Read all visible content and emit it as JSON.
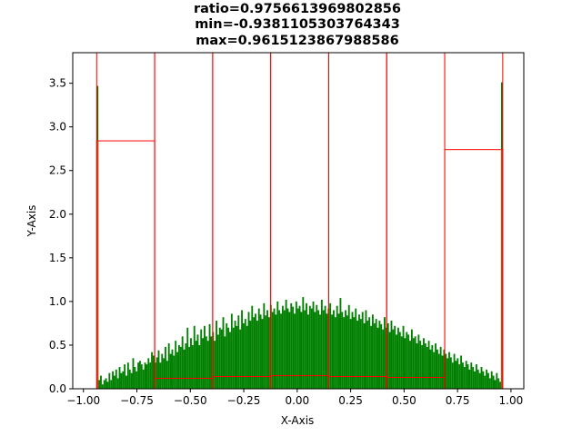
{
  "chart_data": {
    "type": "bar",
    "title_lines": [
      "ratio=0.9756613969802856",
      "min=-0.9381105303764343",
      "max=0.9615123867988586"
    ],
    "xlabel": "X-Axis",
    "ylabel": "Y-Axis",
    "xlim": [
      -1.05,
      1.06
    ],
    "ylim": [
      0,
      3.85
    ],
    "xticks": [
      {
        "value": -1.0,
        "label": "−1.00"
      },
      {
        "value": -0.75,
        "label": "−0.75"
      },
      {
        "value": -0.5,
        "label": "−0.50"
      },
      {
        "value": -0.25,
        "label": "−0.25"
      },
      {
        "value": 0.0,
        "label": "0.00"
      },
      {
        "value": 0.25,
        "label": "0.25"
      },
      {
        "value": 0.5,
        "label": "0.50"
      },
      {
        "value": 0.75,
        "label": "0.75"
      },
      {
        "value": 1.0,
        "label": "1.00"
      }
    ],
    "yticks": [
      {
        "value": 0.0,
        "label": "0.0"
      },
      {
        "value": 0.5,
        "label": "0.5"
      },
      {
        "value": 1.0,
        "label": "1.0"
      },
      {
        "value": 1.5,
        "label": "1.5"
      },
      {
        "value": 2.0,
        "label": "2.0"
      },
      {
        "value": 2.5,
        "label": "2.5"
      },
      {
        "value": 3.0,
        "label": "3.0"
      },
      {
        "value": 3.5,
        "label": "3.5"
      }
    ],
    "grid": false,
    "series": [
      {
        "bar_color": "#008000",
        "x_start": -0.9381,
        "x_end": 0.9615,
        "values": [
          3.47,
          0.1,
          0.15,
          0.05,
          0.1,
          0.12,
          0.08,
          0.18,
          0.1,
          0.2,
          0.15,
          0.22,
          0.12,
          0.25,
          0.18,
          0.2,
          0.28,
          0.15,
          0.3,
          0.22,
          0.18,
          0.35,
          0.25,
          0.2,
          0.3,
          0.32,
          0.28,
          0.22,
          0.3,
          0.28,
          0.35,
          0.3,
          0.42,
          0.38,
          0.3,
          0.36,
          0.44,
          0.3,
          0.4,
          0.35,
          0.48,
          0.32,
          0.52,
          0.4,
          0.45,
          0.38,
          0.55,
          0.42,
          0.5,
          0.48,
          0.6,
          0.45,
          0.52,
          0.7,
          0.48,
          0.58,
          0.5,
          0.72,
          0.55,
          0.62,
          0.5,
          0.68,
          0.58,
          0.72,
          0.6,
          0.55,
          0.74,
          0.6,
          0.65,
          0.55,
          0.78,
          0.62,
          0.7,
          0.68,
          0.82,
          0.6,
          0.75,
          0.7,
          0.65,
          0.86,
          0.7,
          0.78,
          0.72,
          0.84,
          0.68,
          0.9,
          0.75,
          0.8,
          0.72,
          0.88,
          0.78,
          0.95,
          0.82,
          0.86,
          0.78,
          0.92,
          0.85,
          0.8,
          0.98,
          0.84,
          0.9,
          0.82,
          0.96,
          0.88,
          0.92,
          0.85,
          1.0,
          0.9,
          0.86,
          0.95,
          0.9,
          1.02,
          0.92,
          0.88,
          0.98,
          0.94,
          0.86,
          1.0,
          0.92,
          0.95,
          0.88,
          1.05,
          0.9,
          0.98,
          0.85,
          0.95,
          0.92,
          1.0,
          0.88,
          0.96,
          0.9,
          0.85,
          1.02,
          0.9,
          0.95,
          0.86,
          0.92,
          0.98,
          0.85,
          0.9,
          0.82,
          0.95,
          0.86,
          1.04,
          0.88,
          0.82,
          0.9,
          0.84,
          0.96,
          0.8,
          0.88,
          0.82,
          0.92,
          0.78,
          0.85,
          0.8,
          0.88,
          0.75,
          0.9,
          0.78,
          0.82,
          0.72,
          0.85,
          0.75,
          0.8,
          0.7,
          0.78,
          0.74,
          0.68,
          0.82,
          0.7,
          0.75,
          0.65,
          0.78,
          0.68,
          0.72,
          0.62,
          0.7,
          0.65,
          0.6,
          0.72,
          0.58,
          0.65,
          0.62,
          0.55,
          0.68,
          0.58,
          0.6,
          0.52,
          0.62,
          0.55,
          0.5,
          0.58,
          0.52,
          0.48,
          0.55,
          0.45,
          0.5,
          0.42,
          0.52,
          0.45,
          0.4,
          0.48,
          0.38,
          0.45,
          0.4,
          0.35,
          0.42,
          0.36,
          0.3,
          0.4,
          0.32,
          0.35,
          0.28,
          0.38,
          0.3,
          0.25,
          0.32,
          0.28,
          0.22,
          0.3,
          0.25,
          0.2,
          0.28,
          0.22,
          0.18,
          0.25,
          0.2,
          0.15,
          0.22,
          0.18,
          0.12,
          0.2,
          0.15,
          0.1,
          0.18,
          0.12,
          0.08,
          3.51
        ]
      },
      {
        "bar_color": "#b0501c",
        "edgecolor": "#ff0000",
        "bins": [
          {
            "x0": -0.9381,
            "x1": -0.6668,
            "value": 2.84
          },
          {
            "x0": -0.6668,
            "x1": -0.3954,
            "value": 0.12
          },
          {
            "x0": -0.3954,
            "x1": -0.1241,
            "value": 0.14
          },
          {
            "x0": -0.1241,
            "x1": 0.1473,
            "value": 0.15
          },
          {
            "x0": 0.1473,
            "x1": 0.4186,
            "value": 0.14
          },
          {
            "x0": 0.4186,
            "x1": 0.69,
            "value": 0.13
          },
          {
            "x0": 0.69,
            "x1": 0.9615,
            "value": 2.74
          }
        ]
      }
    ]
  }
}
